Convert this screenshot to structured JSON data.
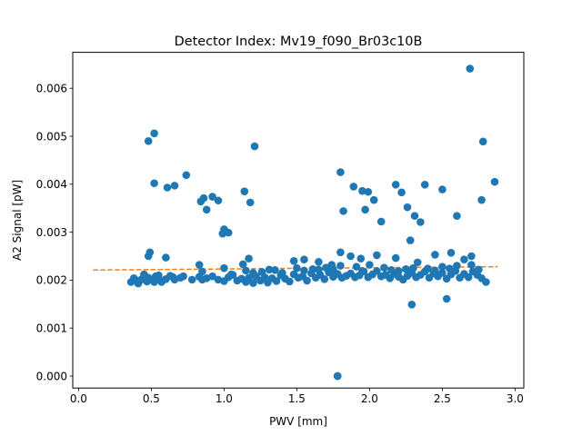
{
  "chart_data": {
    "type": "scatter",
    "title": "Detector Index: Mv19_f090_Br03c10B",
    "xlabel": "PWV [mm]",
    "ylabel": "A2 Signal [pW]",
    "xlim": [
      -0.04,
      3.06
    ],
    "ylim": [
      -0.00025,
      0.00675
    ],
    "xticks": [
      0.0,
      0.5,
      1.0,
      1.5,
      2.0,
      2.5,
      3.0
    ],
    "xtick_labels": [
      "0.0",
      "0.5",
      "1.0",
      "1.5",
      "2.0",
      "2.5",
      "3.0"
    ],
    "yticks": [
      0.0,
      0.001,
      0.002,
      0.003,
      0.004,
      0.005,
      0.006
    ],
    "ytick_labels": [
      "0.000",
      "0.001",
      "0.002",
      "0.003",
      "0.004",
      "0.005",
      "0.006"
    ],
    "grid": false,
    "colors": {
      "points": "#1f77b4",
      "fit": "#ff7f0e"
    },
    "series": [
      {
        "name": "A2 Signal",
        "kind": "scatter",
        "x": [
          0.36,
          0.38,
          0.4,
          0.41,
          0.43,
          0.45,
          0.47,
          0.48,
          0.5,
          0.52,
          0.53,
          0.55,
          0.57,
          0.6,
          0.63,
          0.66,
          0.7,
          0.72,
          0.78,
          0.83,
          0.85,
          0.88,
          0.92,
          0.96,
          1.0,
          1.03,
          1.06,
          1.09,
          1.12,
          1.15,
          1.17,
          1.2,
          1.22,
          1.25,
          1.28,
          1.3,
          1.33,
          1.36,
          1.39,
          1.42,
          1.45,
          1.48,
          1.51,
          1.54,
          1.57,
          1.6,
          1.63,
          1.66,
          1.69,
          1.72,
          1.75,
          1.78,
          1.81,
          1.84,
          1.87,
          1.9,
          1.93,
          1.96,
          1.99,
          2.02,
          2.05,
          2.08,
          2.11,
          2.14,
          2.17,
          2.2,
          2.23,
          2.26,
          2.29,
          2.32,
          2.35,
          2.38,
          2.41,
          2.44,
          2.47,
          2.5,
          2.53,
          2.56,
          2.59,
          2.62,
          2.65,
          2.68,
          2.71,
          2.74,
          2.77,
          2.8,
          0.45,
          0.55,
          0.65,
          0.85,
          1.05,
          1.15,
          1.35,
          1.55,
          1.65,
          1.75,
          1.95,
          2.15,
          2.25,
          2.45,
          2.55,
          2.75,
          1.2,
          1.26,
          1.31,
          1.4,
          1.5,
          1.61,
          1.7,
          1.8,
          1.91,
          2.0,
          2.1,
          2.2,
          2.3,
          2.4,
          2.5,
          2.6,
          2.7,
          0.48,
          0.49,
          0.6,
          0.83,
          1.0,
          1.13,
          1.17,
          1.48,
          1.55,
          1.65,
          1.74,
          1.8,
          1.87,
          1.94,
          2.05,
          2.18,
          2.28,
          2.33,
          2.45,
          2.56,
          2.65,
          2.7,
          0.48,
          0.52,
          0.52,
          0.61,
          0.66,
          0.74,
          0.84,
          0.86,
          0.88,
          0.92,
          0.96,
          0.99,
          1.0,
          1.03,
          1.14,
          1.18,
          1.21,
          1.8,
          1.82,
          1.89,
          1.95,
          1.97,
          1.99,
          2.03,
          2.08,
          2.18,
          2.22,
          2.26,
          2.31,
          2.35,
          2.38,
          2.5,
          2.6,
          2.77,
          2.78,
          2.86,
          2.69,
          2.29,
          2.53,
          1.78,
          1.78,
          1.78,
          1.78
        ],
        "y": [
          0.00196,
          0.00204,
          0.00199,
          0.00193,
          0.00201,
          0.00209,
          0.00197,
          0.00205,
          0.00201,
          0.00196,
          0.00208,
          0.00203,
          0.00196,
          0.00202,
          0.00209,
          0.00201,
          0.00205,
          0.00208,
          0.00201,
          0.00207,
          0.00201,
          0.00204,
          0.00208,
          0.00201,
          0.00198,
          0.00206,
          0.00211,
          0.00199,
          0.00203,
          0.00196,
          0.00205,
          0.00194,
          0.00208,
          0.00199,
          0.00206,
          0.00195,
          0.00204,
          0.00198,
          0.0021,
          0.00203,
          0.00197,
          0.00212,
          0.00205,
          0.00208,
          0.00199,
          0.00214,
          0.00205,
          0.00211,
          0.00202,
          0.00216,
          0.00207,
          0.00213,
          0.00205,
          0.00209,
          0.00214,
          0.00206,
          0.0021,
          0.00218,
          0.00206,
          0.00212,
          0.00219,
          0.00208,
          0.00211,
          0.00204,
          0.00213,
          0.00207,
          0.00201,
          0.00209,
          0.00215,
          0.00206,
          0.00211,
          0.00218,
          0.00205,
          0.00214,
          0.00208,
          0.00215,
          0.00203,
          0.00212,
          0.00219,
          0.00205,
          0.00213,
          0.00206,
          0.00218,
          0.00211,
          0.00204,
          0.00196,
          0.00212,
          0.0021,
          0.00206,
          0.00218,
          0.00212,
          0.0022,
          0.00221,
          0.0022,
          0.00222,
          0.00223,
          0.00219,
          0.00221,
          0.00223,
          0.0022,
          0.00224,
          0.00222,
          0.00215,
          0.00217,
          0.00222,
          0.00215,
          0.00225,
          0.00223,
          0.00226,
          0.0023,
          0.00228,
          0.00232,
          0.00226,
          0.00219,
          0.00225,
          0.00224,
          0.00228,
          0.0023,
          0.00232,
          0.0025,
          0.00258,
          0.00247,
          0.00232,
          0.00225,
          0.00233,
          0.00245,
          0.0024,
          0.00243,
          0.00238,
          0.00232,
          0.00258,
          0.0025,
          0.00245,
          0.00252,
          0.00246,
          0.00283,
          0.00237,
          0.00253,
          0.00257,
          0.00243,
          0.0025,
          0.0049,
          0.00506,
          0.00402,
          0.00393,
          0.00397,
          0.00419,
          0.00364,
          0.00371,
          0.00347,
          0.00374,
          0.00366,
          0.00297,
          0.00306,
          0.00299,
          0.00385,
          0.00362,
          0.00479,
          0.00425,
          0.00344,
          0.00395,
          0.00386,
          0.00347,
          0.00384,
          0.00367,
          0.00322,
          0.00399,
          0.00383,
          0.00352,
          0.00334,
          0.00321,
          0.00399,
          0.00389,
          0.00334,
          0.00367,
          0.00489,
          0.00405,
          0.00641,
          0.00149,
          0.00161,
          0.0,
          0.0,
          0.0,
          0.0
        ]
      },
      {
        "name": "Linear fit",
        "kind": "line",
        "style": "dashed",
        "x": [
          0.1,
          2.88
        ],
        "y": [
          0.00221,
          0.00228
        ]
      }
    ]
  }
}
